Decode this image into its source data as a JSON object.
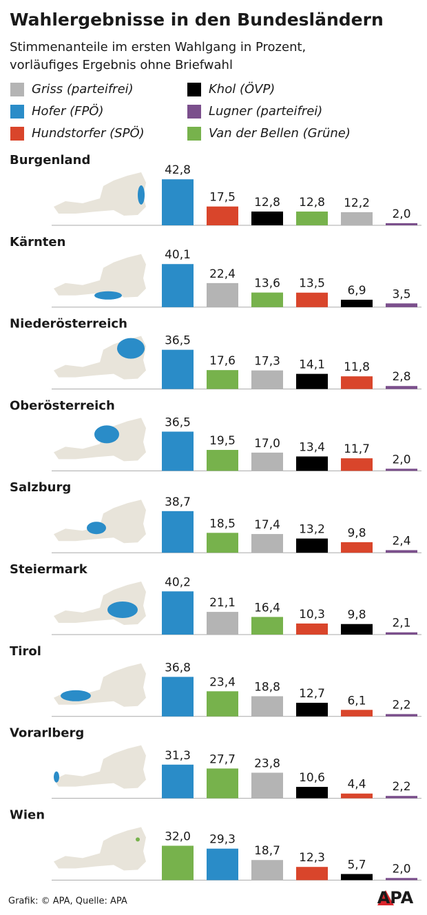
{
  "title": "Wahlergebnisse in den Bundesländern",
  "subtitle": [
    "Stimmenanteile im ersten Wahlgang in Prozent,",
    "vorläufiges Ergebnis ohne Briefwahl"
  ],
  "legend": [
    {
      "name": "Griss (parteifrei)",
      "color": "#b4b4b4"
    },
    {
      "name": "Hofer (FPÖ)",
      "color": "#2a8cc8"
    },
    {
      "name": "Hundstorfer (SPÖ)",
      "color": "#d9452b"
    },
    {
      "name": "Khol (ÖVP)",
      "color": "#000000"
    },
    {
      "name": "Lugner (parteifrei)",
      "color": "#7b4f8c"
    },
    {
      "name": "Van der Bellen (Grüne)",
      "color": "#77b24c"
    }
  ],
  "source": "Grafik: © APA, Quelle: APA",
  "logo": "APA",
  "chart_data": [
    {
      "type": "bar",
      "title": "Burgenland",
      "values": [
        42.8,
        17.5,
        12.8,
        12.8,
        12.2,
        2.0
      ],
      "value_labels": [
        "42,8",
        "17,5",
        "12,8",
        "12,8",
        "12,2",
        "2,0"
      ],
      "colors": [
        "#2a8cc8",
        "#d9452b",
        "#000000",
        "#77b24c",
        "#b4b4b4",
        "#7b4f8c"
      ]
    },
    {
      "type": "bar",
      "title": "Kärnten",
      "values": [
        40.1,
        22.4,
        13.6,
        13.5,
        6.9,
        3.5
      ],
      "value_labels": [
        "40,1",
        "22,4",
        "13,6",
        "13,5",
        "6,9",
        "3,5"
      ],
      "colors": [
        "#2a8cc8",
        "#b4b4b4",
        "#77b24c",
        "#d9452b",
        "#000000",
        "#7b4f8c"
      ]
    },
    {
      "type": "bar",
      "title": "Niederösterreich",
      "values": [
        36.5,
        17.6,
        17.3,
        14.1,
        11.8,
        2.8
      ],
      "value_labels": [
        "36,5",
        "17,6",
        "17,3",
        "14,1",
        "11,8",
        "2,8"
      ],
      "colors": [
        "#2a8cc8",
        "#77b24c",
        "#b4b4b4",
        "#000000",
        "#d9452b",
        "#7b4f8c"
      ]
    },
    {
      "type": "bar",
      "title": "Oberösterreich",
      "values": [
        36.5,
        19.5,
        17.0,
        13.4,
        11.7,
        2.0
      ],
      "value_labels": [
        "36,5",
        "19,5",
        "17,0",
        "13,4",
        "11,7",
        "2,0"
      ],
      "colors": [
        "#2a8cc8",
        "#77b24c",
        "#b4b4b4",
        "#000000",
        "#d9452b",
        "#7b4f8c"
      ]
    },
    {
      "type": "bar",
      "title": "Salzburg",
      "values": [
        38.7,
        18.5,
        17.4,
        13.2,
        9.8,
        2.4
      ],
      "value_labels": [
        "38,7",
        "18,5",
        "17,4",
        "13,2",
        "9,8",
        "2,4"
      ],
      "colors": [
        "#2a8cc8",
        "#77b24c",
        "#b4b4b4",
        "#000000",
        "#d9452b",
        "#7b4f8c"
      ]
    },
    {
      "type": "bar",
      "title": "Steiermark",
      "values": [
        40.2,
        21.1,
        16.4,
        10.3,
        9.8,
        2.1
      ],
      "value_labels": [
        "40,2",
        "21,1",
        "16,4",
        "10,3",
        "9,8",
        "2,1"
      ],
      "colors": [
        "#2a8cc8",
        "#b4b4b4",
        "#77b24c",
        "#d9452b",
        "#000000",
        "#7b4f8c"
      ]
    },
    {
      "type": "bar",
      "title": "Tirol",
      "values": [
        36.8,
        23.4,
        18.8,
        12.7,
        6.1,
        2.2
      ],
      "value_labels": [
        "36,8",
        "23,4",
        "18,8",
        "12,7",
        "6,1",
        "2,2"
      ],
      "colors": [
        "#2a8cc8",
        "#77b24c",
        "#b4b4b4",
        "#000000",
        "#d9452b",
        "#7b4f8c"
      ]
    },
    {
      "type": "bar",
      "title": "Vorarlberg",
      "values": [
        31.3,
        27.7,
        23.8,
        10.6,
        4.4,
        2.2
      ],
      "value_labels": [
        "31,3",
        "27,7",
        "23,8",
        "10,6",
        "4,4",
        "2,2"
      ],
      "colors": [
        "#2a8cc8",
        "#77b24c",
        "#b4b4b4",
        "#000000",
        "#d9452b",
        "#7b4f8c"
      ]
    },
    {
      "type": "bar",
      "title": "Wien",
      "values": [
        32.0,
        29.3,
        18.7,
        12.3,
        5.7,
        2.0
      ],
      "value_labels": [
        "32,0",
        "29,3",
        "18,7",
        "12,3",
        "5,7",
        "2,0"
      ],
      "colors": [
        "#77b24c",
        "#2a8cc8",
        "#b4b4b4",
        "#d9452b",
        "#000000",
        "#7b4f8c"
      ]
    }
  ]
}
